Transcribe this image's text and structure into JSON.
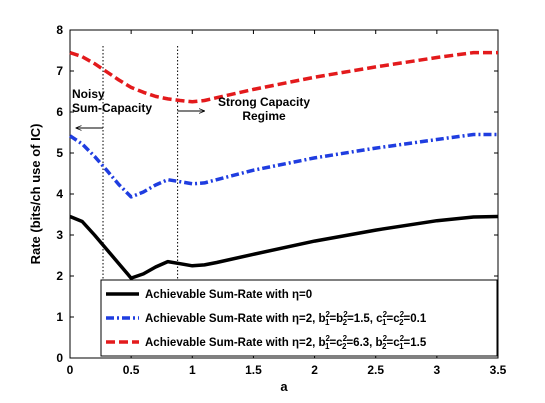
{
  "chart_data": {
    "type": "line",
    "title": "",
    "xlabel": "a",
    "ylabel": "Rate (bits/ch use of IC)",
    "xlim": [
      0,
      3.5
    ],
    "ylim": [
      0,
      8
    ],
    "xticks": [
      "0",
      "0.5",
      "1",
      "1.5",
      "2",
      "2.5",
      "3",
      "3.5"
    ],
    "yticks": [
      "0",
      "1",
      "2",
      "3",
      "4",
      "5",
      "6",
      "7",
      "8"
    ],
    "grid": false,
    "legend_position": "bottom-right",
    "series": [
      {
        "name": "Achievable Sum-Rate with η=0",
        "style": "solid",
        "color": "#000000",
        "x": [
          0,
          0.1,
          0.2,
          0.3,
          0.4,
          0.5,
          0.6,
          0.7,
          0.8,
          0.9,
          1.0,
          1.1,
          1.2,
          1.5,
          2.0,
          2.5,
          3.0,
          3.3,
          3.5
        ],
        "y": [
          3.45,
          3.33,
          3.0,
          2.65,
          2.3,
          1.95,
          2.05,
          2.22,
          2.35,
          2.3,
          2.25,
          2.27,
          2.33,
          2.53,
          2.85,
          3.12,
          3.35,
          3.44,
          3.45
        ]
      },
      {
        "name": "Achievable Sum-Rate with η=2, b₁²=b₂²=1.5, c₁²=c₂²=0.1",
        "style": "dashdot",
        "color": "#1f3de0",
        "x": [
          0,
          0.1,
          0.2,
          0.3,
          0.4,
          0.5,
          0.6,
          0.7,
          0.8,
          0.9,
          1.0,
          1.1,
          1.2,
          1.5,
          2.0,
          2.5,
          3.0,
          3.3,
          3.5
        ],
        "y": [
          5.42,
          5.22,
          4.92,
          4.58,
          4.23,
          3.93,
          4.05,
          4.22,
          4.35,
          4.3,
          4.25,
          4.27,
          4.35,
          4.58,
          4.88,
          5.12,
          5.33,
          5.45,
          5.45
        ]
      },
      {
        "name": "Achievable Sum-Rate with η=2, b₁²=c₂²=6.3, b₂²=c₁²=1.5",
        "style": "dashed",
        "color": "#e31a1c",
        "x": [
          0,
          0.1,
          0.2,
          0.3,
          0.4,
          0.5,
          0.6,
          0.7,
          0.8,
          0.9,
          1.0,
          1.1,
          1.2,
          1.5,
          2.0,
          2.5,
          3.0,
          3.3,
          3.5
        ],
        "y": [
          7.45,
          7.35,
          7.18,
          6.98,
          6.78,
          6.6,
          6.48,
          6.38,
          6.32,
          6.28,
          6.25,
          6.28,
          6.35,
          6.55,
          6.85,
          7.1,
          7.33,
          7.45,
          7.45
        ]
      }
    ],
    "vlines": [
      {
        "x": 0.27,
        "style": "dotted"
      },
      {
        "x": 0.88,
        "style": "dotted"
      }
    ],
    "annotations": [
      {
        "lines": [
          "Noisy",
          "Sum-Capacity"
        ],
        "arrow": "left"
      },
      {
        "lines": [
          "Strong Capacity",
          "Regime"
        ],
        "arrow": "right"
      }
    ],
    "legend": {
      "entries": [
        {
          "prefix": "Achievable Sum-Rate with η=0"
        },
        {
          "prefix": "Achievable Sum-Rate with η=2, b",
          "parts": [
            "1",
            "=b",
            "2",
            "=1.5, c",
            "1",
            "=c",
            "2",
            "=0.1"
          ]
        },
        {
          "prefix": "Achievable Sum-Rate with η=2, b",
          "parts": [
            "1",
            "=c",
            "2",
            "=6.3, b",
            "2",
            "=c",
            "1",
            "=1.5"
          ]
        }
      ]
    }
  }
}
